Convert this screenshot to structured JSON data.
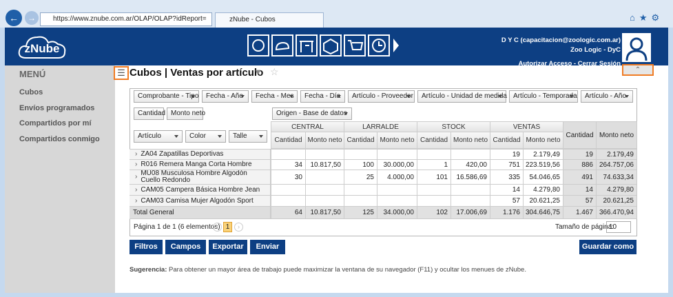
{
  "browser": {
    "url": "https://www.znube.com.ar/OLAP/OLAP?idReport=",
    "tab": "zNube - Cubos"
  },
  "header": {
    "logo": "zNube",
    "user": "D Y C (capacitacion@zoologic.com.ar)",
    "company": "Zoo Logic - DyC",
    "links": "Autorizar Acceso - Cerrar Sesión"
  },
  "menu": {
    "title": "MENÚ",
    "items": [
      "Cubos",
      "Envíos programados",
      "Compartidos por mí",
      "Compartidos conmigo"
    ]
  },
  "page": {
    "title": "Cubos | Ventas por artículo"
  },
  "pivot": {
    "filter_fields": [
      "Comprobante - Tipo",
      "Fecha - Año",
      "Fecha - Mes",
      "Fecha - Día",
      "Artículo - Proveedor",
      "Artículo - Unidad de medida",
      "Artículo - Temporada",
      "Artículo - Año"
    ],
    "data_fields": [
      "Cantidad",
      "Monto neto"
    ],
    "column_field": "Origen - Base de datos",
    "row_fields": [
      "Artículo",
      "Color",
      "Talle"
    ],
    "column_groups": [
      "CENTRAL",
      "LARRALDE",
      "STOCK",
      "VENTAS"
    ],
    "measures": [
      "Cantidad",
      "Monto neto"
    ],
    "rows": [
      {
        "label": "ZA04 Zapatillas Deportivas",
        "cells": [
          null,
          null,
          null,
          null,
          null,
          null,
          "19",
          "2.179,49",
          "19",
          "2.179,49"
        ]
      },
      {
        "label": "R016 Remera Manga Corta Hombre",
        "cells": [
          "34",
          "10.817,50",
          "100",
          "30.000,00",
          "1",
          "420,00",
          "751",
          "223.519,56",
          "886",
          "264.757,06"
        ]
      },
      {
        "label": "MU08 Musculosa Hombre Algodón Cuello Redondo",
        "cells": [
          "30",
          null,
          "25",
          "4.000,00",
          "101",
          "16.586,69",
          "335",
          "54.046,65",
          "491",
          "74.633,34"
        ]
      },
      {
        "label": "CAM05 Campera Básica Hombre Jean",
        "cells": [
          null,
          null,
          null,
          null,
          null,
          null,
          "14",
          "4.279,80",
          "14",
          "4.279,80"
        ]
      },
      {
        "label": "CAM03 Camisa Mujer Algodón Sport",
        "cells": [
          null,
          null,
          null,
          null,
          null,
          null,
          "57",
          "20.621,25",
          "57",
          "20.621,25"
        ]
      }
    ],
    "total": {
      "label": "Total General",
      "cells": [
        "64",
        "10.817,50",
        "125",
        "34.000,00",
        "102",
        "17.006,69",
        "1.176",
        "304.646,75",
        "1.467",
        "366.470,94"
      ]
    }
  },
  "pager": {
    "summary": "Página 1 de 1 (6 elementos)",
    "page": "1",
    "size_label": "Tamaño de página:",
    "size": "10"
  },
  "buttons": [
    "Filtros",
    "Campos",
    "Exportar",
    "Enviar"
  ],
  "save_button": "Guardar como",
  "hint": {
    "label": "Sugerencia:",
    "text": "Para obtener un mayor área de trabajo puede maximizar la ventana de su navegador (F11) y ocultar los menues de zNube."
  }
}
